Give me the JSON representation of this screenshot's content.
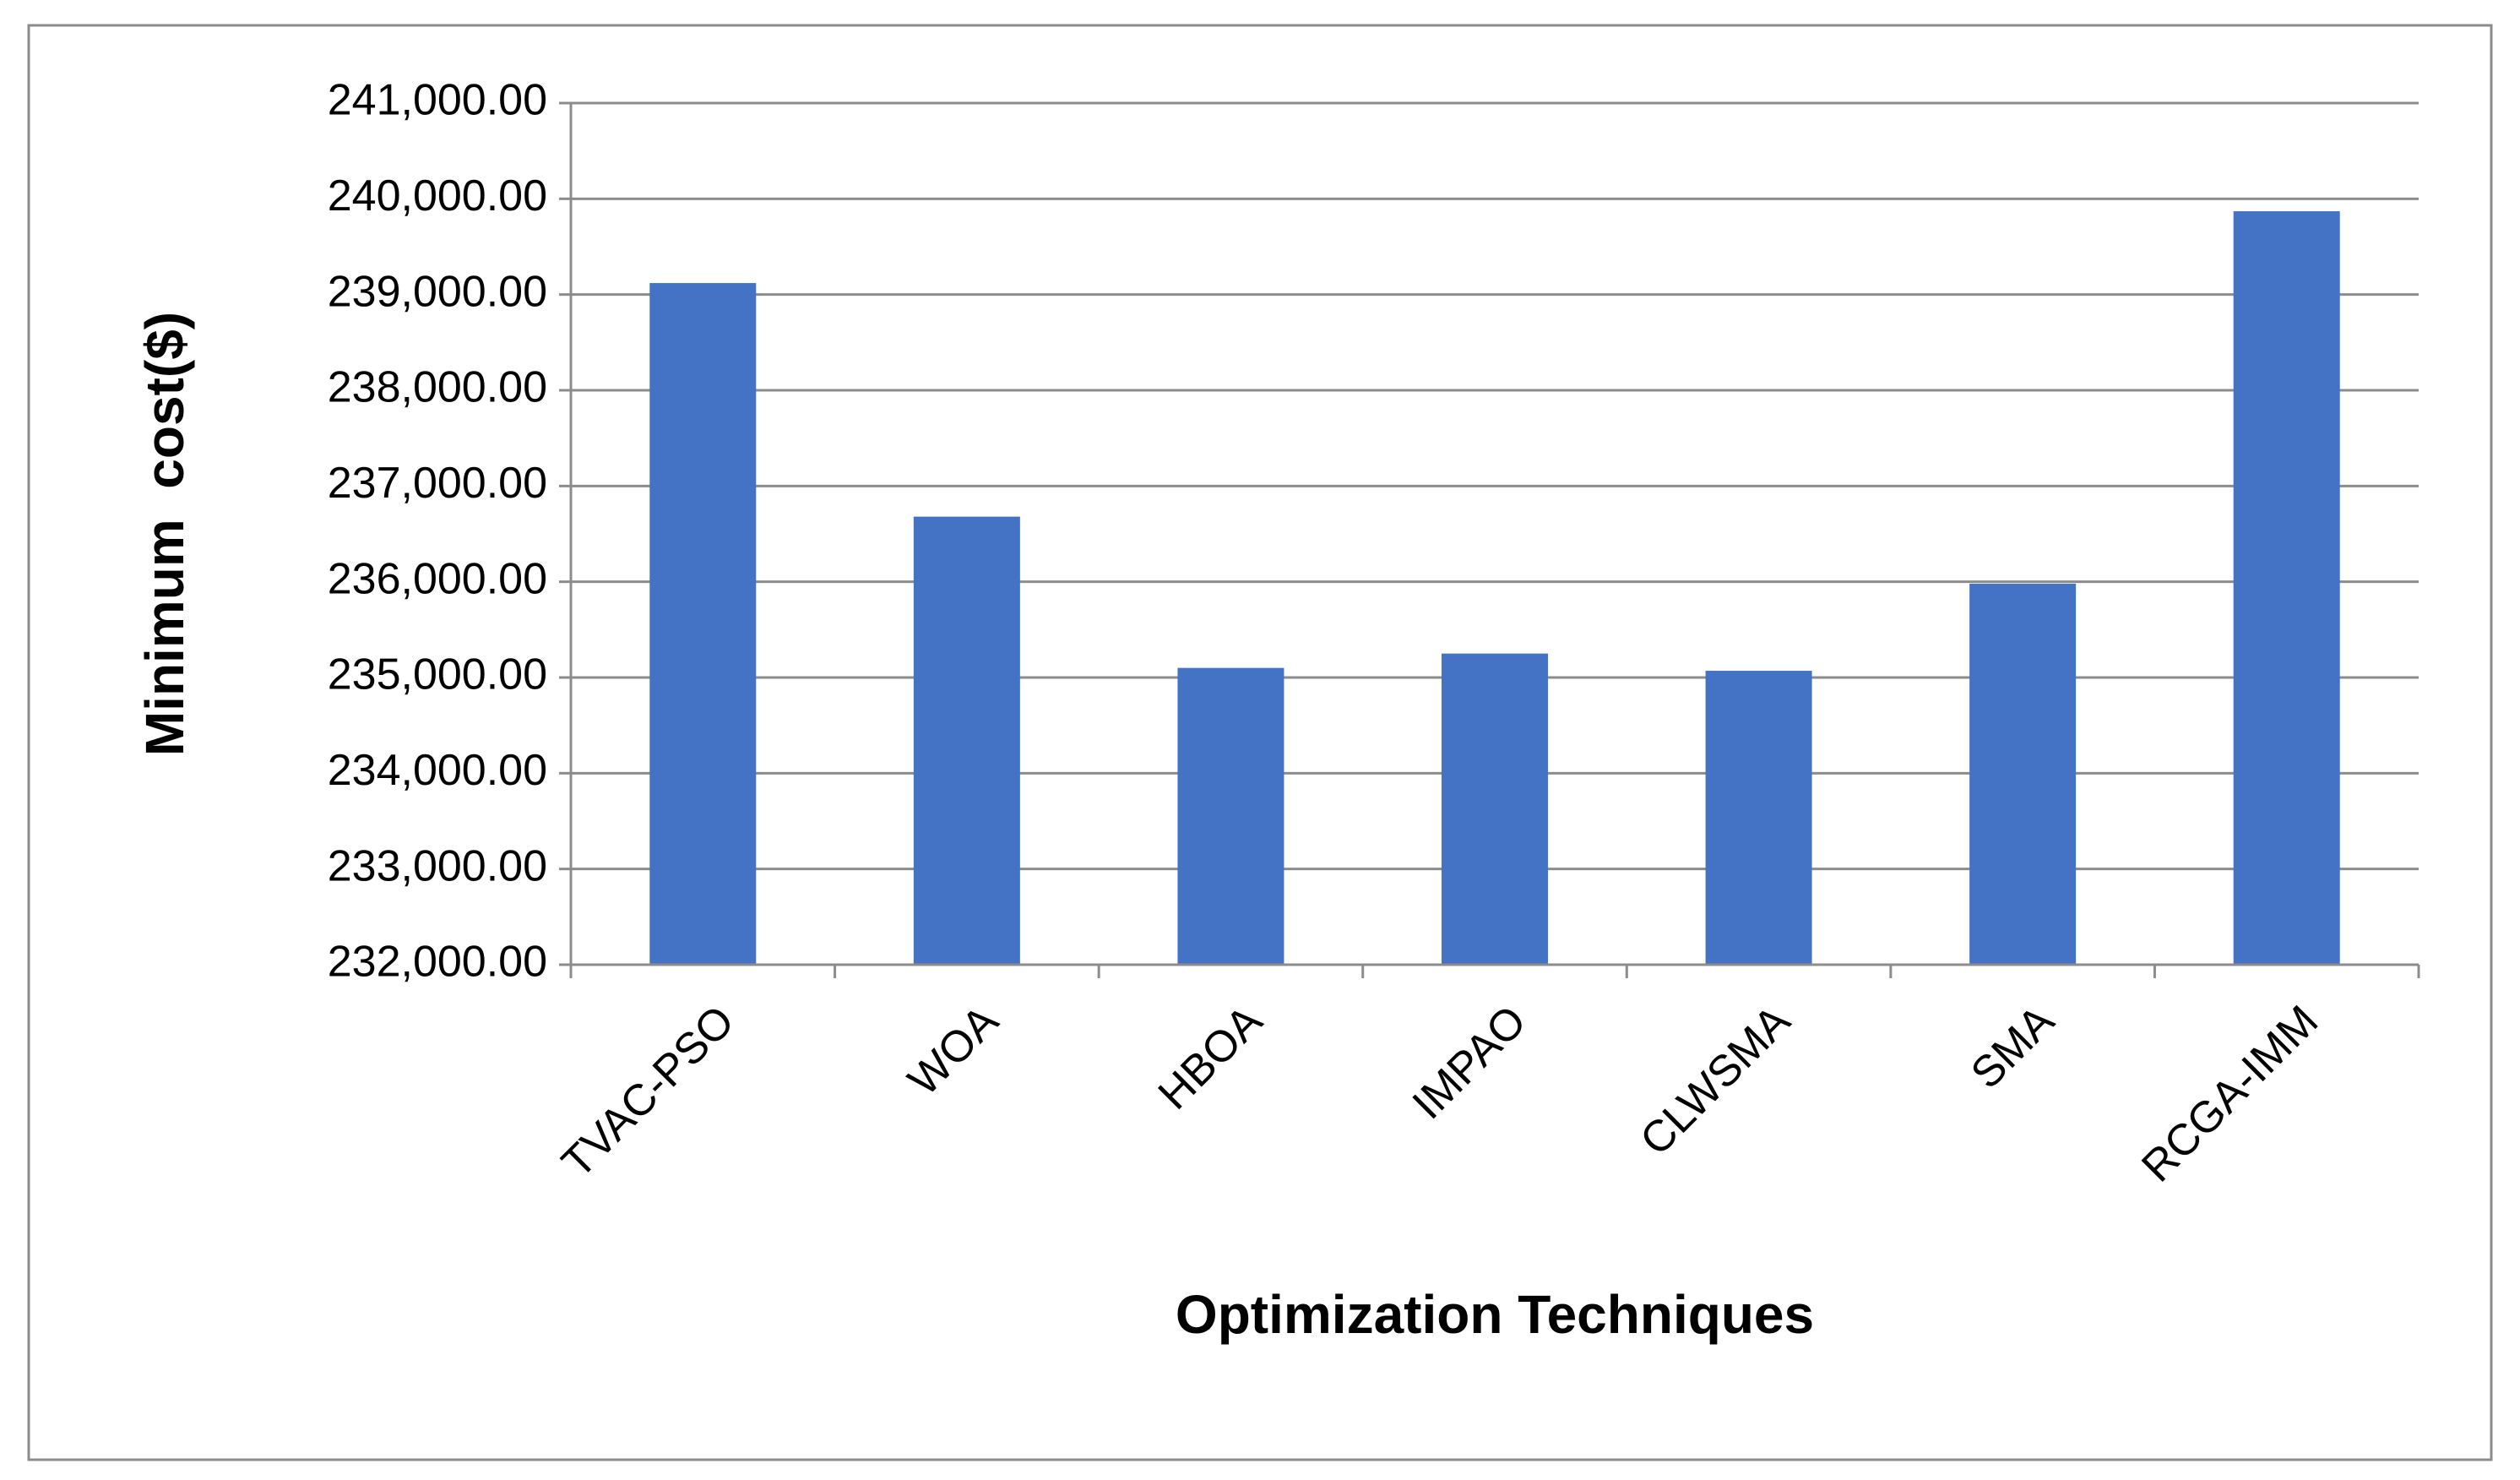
{
  "chart_data": {
    "type": "bar",
    "x_label": "Optimization Techniques",
    "y_label": "Minimum  cost($)",
    "categories": [
      "TVAC-PSO",
      "WOA",
      "HBOA",
      "IMPAO",
      "CLWSMA",
      "SMA",
      "RCGA-IMM"
    ],
    "values": [
      239120,
      236680,
      235100,
      235250,
      235070,
      235980,
      239870
    ],
    "color": "#4472c4",
    "ylim": [
      232000,
      241000
    ],
    "yticks": [
      {
        "value": 232000,
        "label": "232,000.00"
      },
      {
        "value": 233000,
        "label": "233,000.00"
      },
      {
        "value": 234000,
        "label": "234,000.00"
      },
      {
        "value": 235000,
        "label": "235,000.00"
      },
      {
        "value": 236000,
        "label": "236,000.00"
      },
      {
        "value": 237000,
        "label": "237,000.00"
      },
      {
        "value": 238000,
        "label": "238,000.00"
      },
      {
        "value": 239000,
        "label": "239,000.00"
      },
      {
        "value": 240000,
        "label": "240,000.00"
      },
      {
        "value": 241000,
        "label": "241,000.00"
      }
    ],
    "grid": true
  }
}
